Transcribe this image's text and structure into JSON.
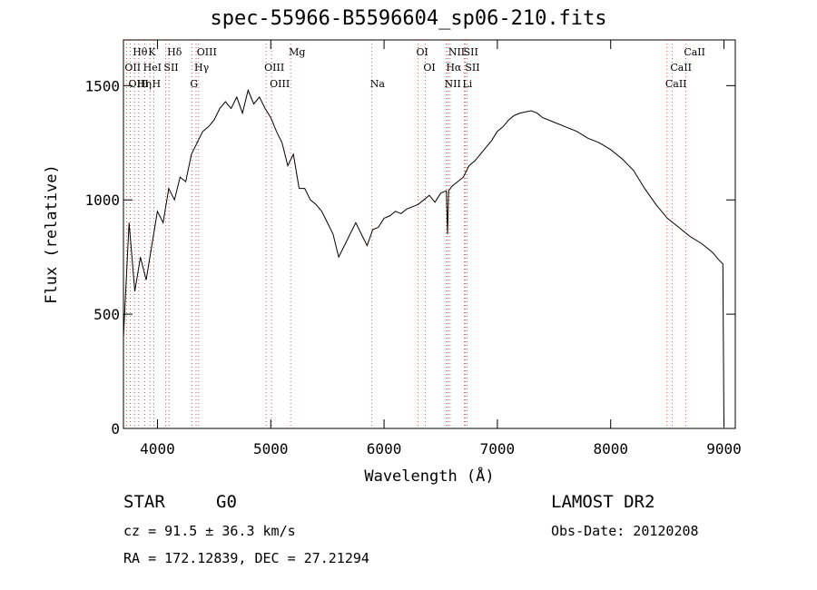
{
  "chart_data": {
    "type": "line",
    "title": "spec-55966-B5596604_sp06-210.fits",
    "xlabel": "Wavelength (Å)",
    "ylabel": "Flux (relative)",
    "xlim": [
      3700,
      9100
    ],
    "ylim": [
      0,
      1700
    ],
    "xticks": [
      4000,
      5000,
      6000,
      7000,
      8000,
      9000
    ],
    "yticks": [
      0,
      500,
      1000,
      1500
    ],
    "grid": false,
    "series": [
      {
        "x": [
          3700,
          3750,
          3800,
          3850,
          3900,
          3950,
          4000,
          4050,
          4100,
          4150,
          4200,
          4250,
          4300,
          4350,
          4400,
          4450,
          4500,
          4550,
          4600,
          4650,
          4700,
          4750,
          4800,
          4850,
          4900,
          4950,
          5000,
          5050,
          5100,
          5150,
          5200,
          5250,
          5300,
          5350,
          5400,
          5450,
          5500,
          5550,
          5600,
          5650,
          5700,
          5750,
          5800,
          5850,
          5900,
          5950,
          6000,
          6050,
          6100,
          6150,
          6200,
          6250,
          6300,
          6350,
          6400,
          6450,
          6500,
          6550,
          6560,
          6570,
          6600,
          6650,
          6700,
          6750,
          6800,
          6850,
          6900,
          6950,
          7000,
          7050,
          7100,
          7150,
          7200,
          7250,
          7300,
          7350,
          7400,
          7500,
          7600,
          7700,
          7800,
          7900,
          8000,
          8100,
          8200,
          8300,
          8400,
          8500,
          8600,
          8700,
          8800,
          8850,
          8900,
          8950,
          8990,
          9000
        ],
        "y": [
          400,
          900,
          600,
          750,
          650,
          800,
          950,
          900,
          1050,
          1000,
          1100,
          1080,
          1200,
          1250,
          1300,
          1320,
          1350,
          1400,
          1430,
          1400,
          1450,
          1380,
          1480,
          1420,
          1450,
          1400,
          1360,
          1300,
          1250,
          1150,
          1200,
          1050,
          1050,
          1000,
          980,
          950,
          900,
          850,
          750,
          800,
          850,
          900,
          850,
          800,
          870,
          880,
          920,
          930,
          950,
          940,
          960,
          970,
          980,
          1000,
          1020,
          990,
          1030,
          1040,
          850,
          1040,
          1060,
          1080,
          1100,
          1150,
          1170,
          1200,
          1230,
          1260,
          1300,
          1320,
          1350,
          1370,
          1380,
          1385,
          1390,
          1380,
          1360,
          1340,
          1320,
          1300,
          1270,
          1250,
          1220,
          1180,
          1130,
          1050,
          980,
          920,
          880,
          840,
          810,
          790,
          770,
          740,
          720,
          0
        ]
      }
    ],
    "lines": [
      {
        "label": "Hθ",
        "x": 3798,
        "row": 1
      },
      {
        "label": "K",
        "x": 3934,
        "row": 1
      },
      {
        "label": "Hδ",
        "x": 4102,
        "row": 1
      },
      {
        "label": "OIII",
        "x": 4363,
        "row": 1
      },
      {
        "label": "Mg",
        "x": 5175,
        "row": 1
      },
      {
        "label": "OI",
        "x": 6300,
        "row": 1
      },
      {
        "label": "NII",
        "x": 6583,
        "row": 1
      },
      {
        "label": "SII",
        "x": 6717,
        "row": 1
      },
      {
        "label": "CaII",
        "x": 8662,
        "row": 1
      },
      {
        "label": "OII",
        "x": 3727,
        "row": 2
      },
      {
        "label": "HeI",
        "x": 3889,
        "row": 2
      },
      {
        "label": "SII",
        "x": 4072,
        "row": 2
      },
      {
        "label": "Hγ",
        "x": 4341,
        "row": 2
      },
      {
        "label": "OIII",
        "x": 4959,
        "row": 2
      },
      {
        "label": "OI",
        "x": 6363,
        "row": 2
      },
      {
        "label": "Hα",
        "x": 6563,
        "row": 2
      },
      {
        "label": "SII",
        "x": 6731,
        "row": 2
      },
      {
        "label": "CaII",
        "x": 8542,
        "row": 2
      },
      {
        "label": "OIII",
        "x": 3760,
        "row": 3
      },
      {
        "label": "Hη",
        "x": 3835,
        "row": 3
      },
      {
        "label": "H",
        "x": 3968,
        "row": 3
      },
      {
        "label": "G",
        "x": 4304,
        "row": 3
      },
      {
        "label": "OIII",
        "x": 5007,
        "row": 3
      },
      {
        "label": "Na",
        "x": 5893,
        "row": 3
      },
      {
        "label": "NII",
        "x": 6548,
        "row": 3
      },
      {
        "label": "Li",
        "x": 6708,
        "row": 3
      },
      {
        "label": "CaII",
        "x": 8498,
        "row": 3
      }
    ]
  },
  "info": {
    "class": "STAR",
    "subclass": "G0",
    "survey": "LAMOST DR2",
    "redshift": "cz = 91.5 ± 36.3 km/s",
    "obsdate": "Obs-Date: 20120208",
    "coords": "RA = 172.12839, DEC =  27.21294"
  }
}
